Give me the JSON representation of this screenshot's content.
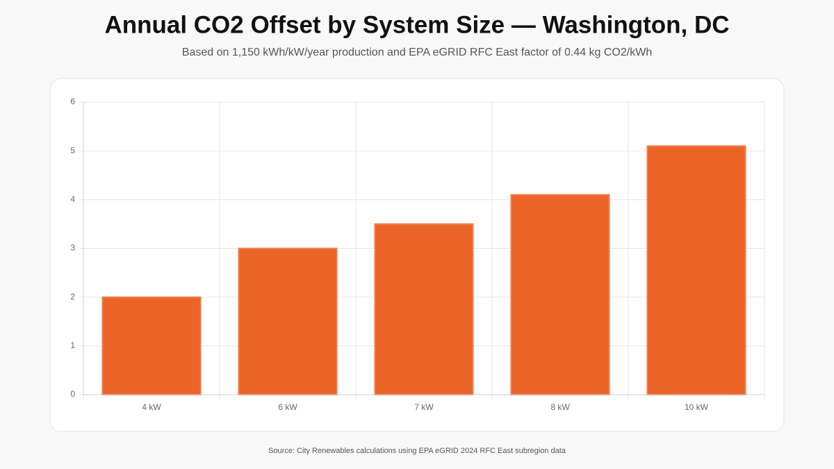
{
  "chart_data": {
    "type": "bar",
    "title": "Annual CO2 Offset by System Size — Washington, DC",
    "subtitle": "Based on 1,150 kWh/kW/year production and EPA eGRID RFC East factor of 0.44 kg CO2/kWh",
    "categories": [
      "4 kW",
      "6 kW",
      "7 kW",
      "8 kW",
      "10 kW"
    ],
    "values": [
      2,
      3,
      3.5,
      4.1,
      5.1
    ],
    "color": "#ec6428",
    "ylim": [
      0,
      6
    ],
    "yticks": [
      0,
      1,
      2,
      3,
      4,
      5,
      6
    ],
    "grid": true,
    "source": "Source: City Renewables calculations using EPA eGRID 2024 RFC East subregion data"
  }
}
